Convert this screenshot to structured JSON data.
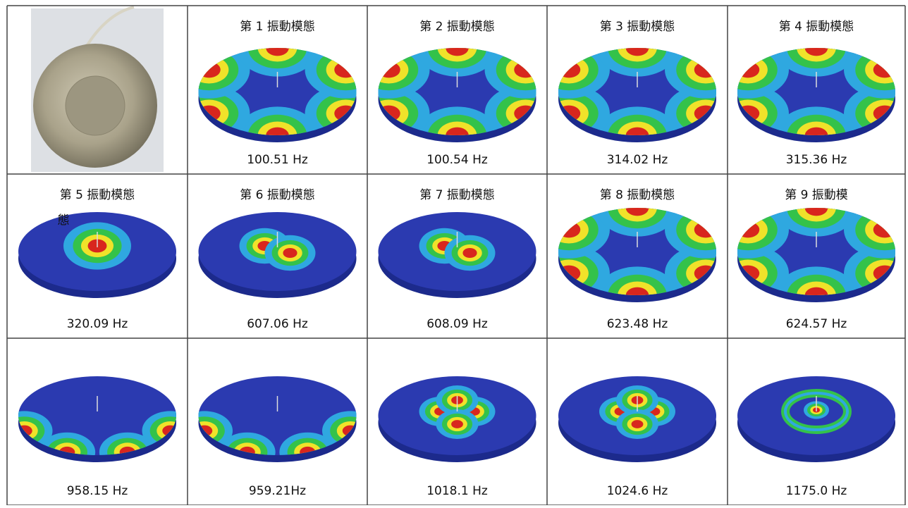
{
  "modes": [
    {
      "title": "第 1 振動模態",
      "frequency": "100.51 Hz"
    },
    {
      "title": "第 2 振動模態",
      "frequency": "100.54 Hz"
    },
    {
      "title": "第 3 振動模態",
      "frequency": "314.02 Hz"
    },
    {
      "title": "第 4 振動模態",
      "frequency": "315.36 Hz"
    },
    {
      "title": "第 5 振動模態",
      "title_overflow": "態",
      "frequency": "320.09 Hz"
    },
    {
      "title": "第 6 振動模態",
      "frequency": "607.06 Hz"
    },
    {
      "title": "第 7 振動模態",
      "frequency": "608.09 Hz"
    },
    {
      "title": "第 8 振動模態",
      "frequency": "623.48 Hz"
    },
    {
      "title": "第 9 振動模",
      "frequency": "624.57 Hz"
    },
    {
      "frequency": "958.15 Hz"
    },
    {
      "frequency": "959.21Hz"
    },
    {
      "frequency": "1018.1 Hz"
    },
    {
      "frequency": "1024.6 Hz"
    },
    {
      "frequency": "1175.0 Hz"
    }
  ]
}
